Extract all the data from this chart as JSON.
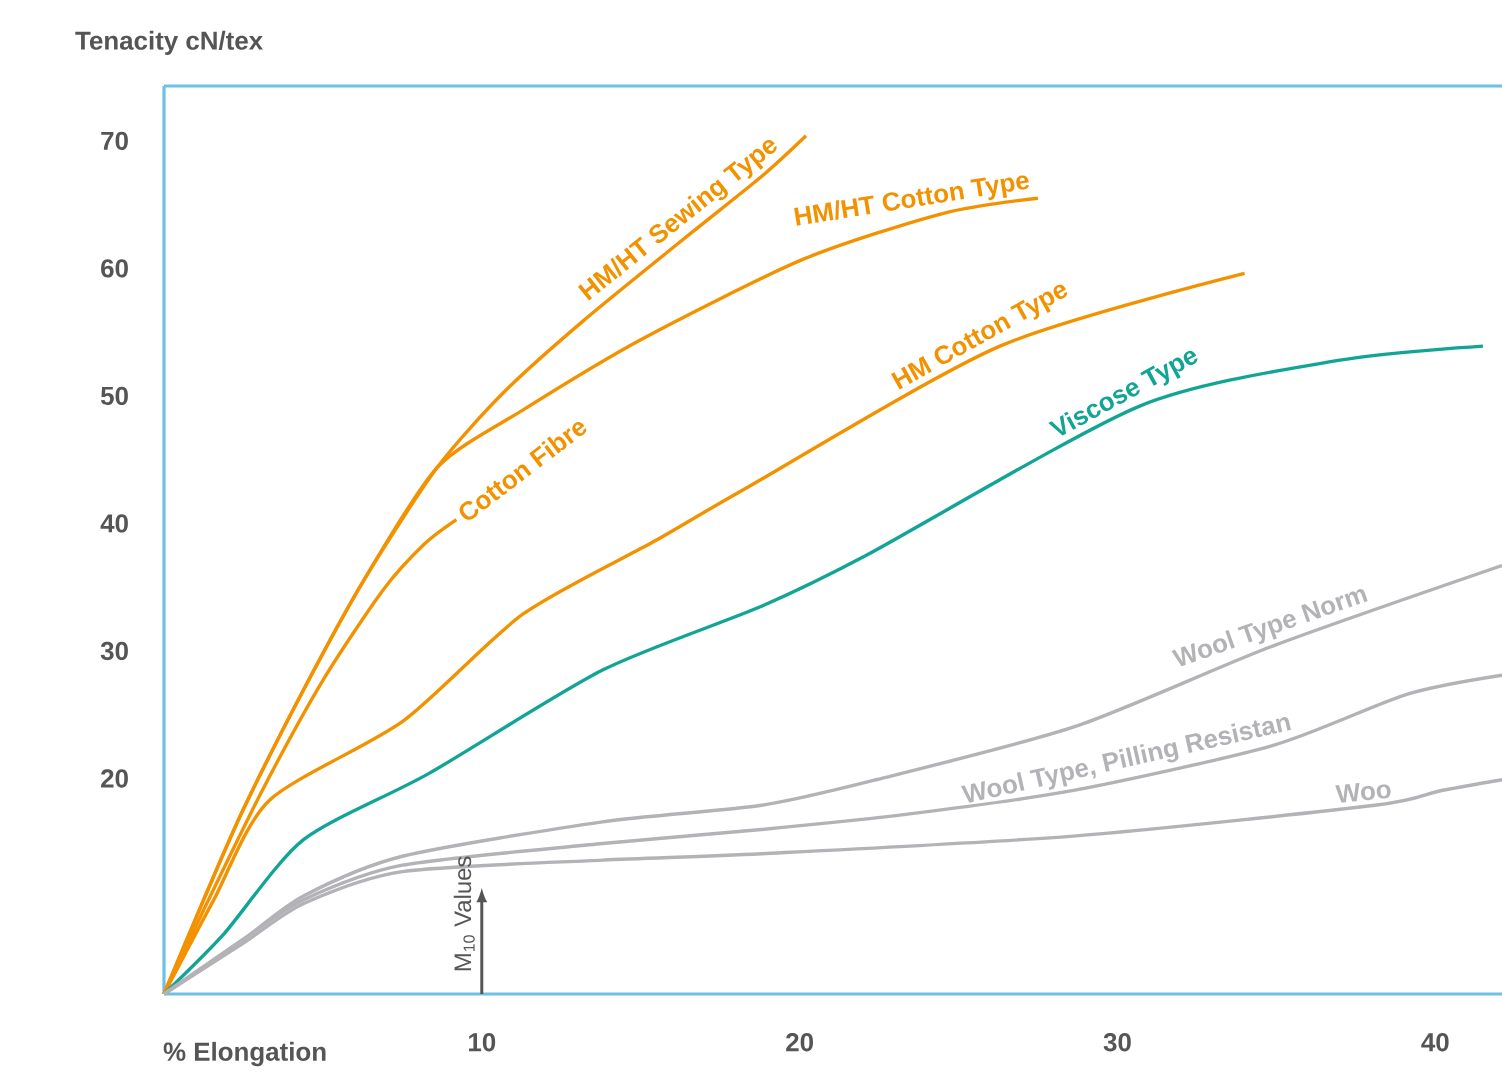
{
  "chart_data": {
    "type": "line",
    "xlabel": "% Elongation",
    "ylabel": "Tenacity  cN/tex",
    "xlim": [
      0,
      42.1
    ],
    "ylim": [
      3.1,
      74.3
    ],
    "xticks": [
      10,
      20,
      30,
      40
    ],
    "yticks": [
      20,
      30,
      40,
      50,
      60,
      70
    ],
    "annotations": [
      "M$_{10}$ Values"
    ],
    "series": [
      {
        "name": "HM/HT Sewing Type",
        "color": "#f39200",
        "x": [
          0,
          1.25,
          2.5,
          4.4,
          6.3,
          8.6,
          10.7,
          13.2,
          16.3,
          18.8,
          20.2
        ],
        "values": [
          3.1,
          10.5,
          17.6,
          27,
          35.6,
          44.4,
          50.3,
          55.9,
          62.2,
          67.2,
          70.4
        ]
      },
      {
        "name": "HM/HT Cotton Type",
        "color": "#f39200",
        "x": [
          0,
          1.25,
          2.5,
          4.4,
          6.3,
          8.6,
          11.3,
          15.0,
          20.1,
          24.5,
          27.5
        ],
        "values": [
          3.1,
          10.5,
          17.6,
          27,
          35.6,
          44.4,
          48.9,
          54.4,
          60.7,
          64.3,
          65.5
        ]
      },
      {
        "name": "Cotton Fibre",
        "color": "#f39200",
        "x": [
          0,
          1.25,
          3.1,
          5.0,
          6.9,
          8.2,
          9.2
        ],
        "values": [
          3.1,
          9.7,
          19.1,
          27.7,
          34.8,
          38.4,
          40.3
        ]
      },
      {
        "name": "HM Cotton Type",
        "color": "#f39200",
        "x": [
          0,
          1.57,
          3.32,
          7.52,
          11.3,
          15.5,
          18.2,
          26.3,
          34.0
        ],
        "values": [
          3.1,
          10.5,
          18.3,
          24.5,
          32.9,
          38.7,
          42.6,
          53.9,
          59.6
        ]
      },
      {
        "name": "Viscose Type",
        "color": "#12a595",
        "x": [
          0,
          1.88,
          4.39,
          8.34,
          13.8,
          18.8,
          22.1,
          30.7,
          37.0,
          41.5
        ],
        "values": [
          3.1,
          7.8,
          15.2,
          20.4,
          28.5,
          33.5,
          37.5,
          49.2,
          52.8,
          53.9
        ]
      },
      {
        "name": "Wool Type Norm",
        "color": "#b3b3b7",
        "x": [
          0,
          2.5,
          4.4,
          7.5,
          13.8,
          18.8,
          22.4,
          28.7,
          34.9,
          42.1
        ],
        "values": [
          3.1,
          7.4,
          10.8,
          13.9,
          16.6,
          17.9,
          19.9,
          24.1,
          30.4,
          36.7
        ]
      },
      {
        "name": "Wool Type, Pilling Resistan",
        "color": "#b3b3b7",
        "x": [
          0,
          2.5,
          4.4,
          7.5,
          13.8,
          18.8,
          23.4,
          28.7,
          34.9,
          39.1,
          42.1
        ],
        "values": [
          3.1,
          7.4,
          10.5,
          13.2,
          14.9,
          16.0,
          17.2,
          19.1,
          22.6,
          26.6,
          28.1
        ]
      },
      {
        "name": "Woo",
        "color": "#b3b3b7",
        "x": [
          0,
          2.5,
          4.4,
          7.5,
          13.8,
          18.8,
          28.7,
          38.1,
          40.1,
          42.1
        ],
        "values": [
          3.1,
          7.1,
          10.2,
          12.7,
          13.6,
          14.1,
          15.5,
          17.9,
          19.0,
          19.9
        ]
      }
    ]
  }
}
